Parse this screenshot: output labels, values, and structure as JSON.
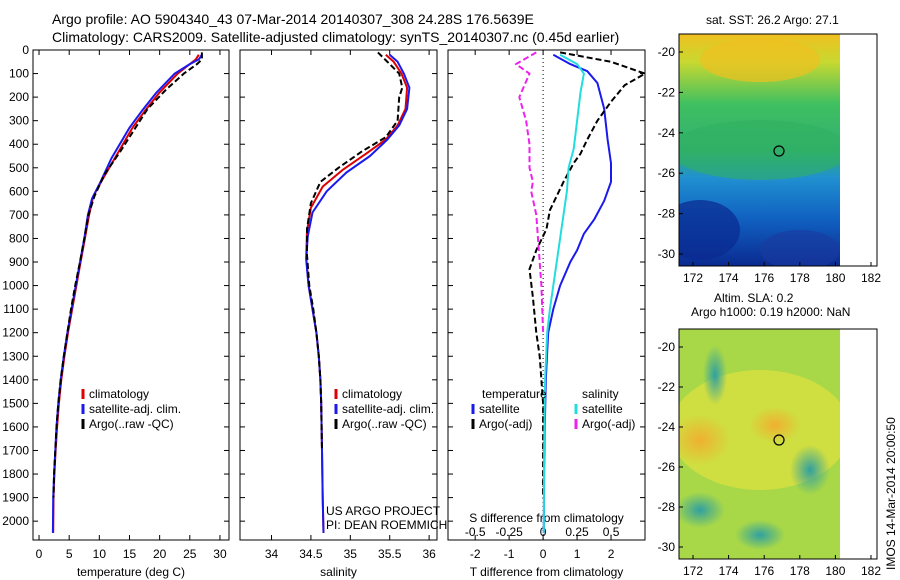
{
  "title_line1": "Argo profile: AO 5904340_43 07-Mar-2014 20140307_308 24.28S 176.5639E",
  "title_line2": "Climatology: CARS2009. Satellite-adjusted climatology: synTS_20140307.nc (0.45d earlier)",
  "colors": {
    "clim": "#dd0000",
    "sat": "#1a1aee",
    "argo": "#000000",
    "sat_s": "#22dddd",
    "argo_s": "#ee22ee"
  },
  "chart_data": [
    {
      "type": "line",
      "name": "temperature",
      "xlabel": "temperature (deg C)",
      "xlim": [
        -1,
        31.5
      ],
      "ylim": [
        2080,
        0
      ],
      "xticks": [
        0,
        5,
        10,
        15,
        20,
        25,
        30
      ],
      "yticks": [
        0,
        100,
        200,
        300,
        400,
        500,
        600,
        700,
        800,
        900,
        1000,
        1100,
        1200,
        1300,
        1400,
        1500,
        1600,
        1700,
        1800,
        1900,
        2000
      ],
      "legend": [
        "climatology",
        "satellite-adj. clim.",
        "Argo(..raw -QC)"
      ],
      "series": [
        {
          "name": "climatology",
          "color_key": "clim",
          "dash": "",
          "x": [
            26.5,
            26.0,
            25.0,
            23.0,
            20.0,
            17.5,
            15.5,
            13.0,
            10.5,
            9.0,
            8.3,
            7.6,
            6.9,
            6.2,
            5.5,
            4.8,
            4.2,
            3.7,
            3.3,
            3.0,
            2.75,
            2.55,
            2.4,
            2.35
          ],
          "y": [
            20,
            40,
            60,
            100,
            180,
            260,
            330,
            440,
            550,
            620,
            700,
            800,
            900,
            1000,
            1100,
            1200,
            1300,
            1400,
            1500,
            1600,
            1700,
            1800,
            1900,
            2050
          ]
        },
        {
          "name": "satellite-adj. clim.",
          "color_key": "sat",
          "dash": "",
          "x": [
            27.0,
            26.5,
            25.0,
            22.5,
            19.5,
            17.0,
            15.0,
            12.0,
            10.2,
            8.8,
            8.1,
            7.5,
            6.8,
            6.1,
            5.4,
            4.7,
            4.1,
            3.6,
            3.2,
            2.9,
            2.7,
            2.5,
            2.35,
            2.3
          ],
          "y": [
            20,
            40,
            60,
            100,
            180,
            260,
            330,
            460,
            560,
            630,
            700,
            800,
            900,
            1000,
            1100,
            1200,
            1300,
            1400,
            1500,
            1600,
            1700,
            1800,
            1900,
            2050
          ]
        },
        {
          "name": "Argo(..raw -QC)",
          "color_key": "argo",
          "dash": "6,3",
          "x": [
            27.0,
            27.0,
            26.2,
            24.0,
            21.0,
            18.0,
            16.0,
            13.5,
            10.8,
            9.2,
            8.2,
            7.5,
            6.8,
            6.0,
            5.3,
            4.7,
            4.1,
            3.6,
            3.2,
            2.9,
            2.7,
            2.5,
            2.4
          ],
          "y": [
            10,
            40,
            60,
            100,
            170,
            250,
            330,
            430,
            530,
            620,
            700,
            800,
            900,
            1000,
            1100,
            1200,
            1300,
            1400,
            1500,
            1600,
            1700,
            1800,
            1900
          ]
        }
      ]
    },
    {
      "type": "line",
      "name": "salinity",
      "xlabel": "salinity",
      "xlim": [
        33.6,
        36.1
      ],
      "ylim": [
        2080,
        0
      ],
      "xticks": [
        34,
        34.5,
        35,
        35.5,
        36
      ],
      "legend": [
        "climatology",
        "satellite-adj. clim.",
        "Argo(..raw -QC)"
      ],
      "series": [
        {
          "name": "climatology",
          "color_key": "clim",
          "dash": "",
          "x": [
            35.45,
            35.55,
            35.65,
            35.72,
            35.7,
            35.6,
            35.45,
            35.2,
            34.9,
            34.65,
            34.5,
            34.45,
            34.44,
            34.47,
            34.52,
            34.57,
            34.6,
            34.62,
            34.63,
            34.64,
            34.65,
            34.66
          ],
          "y": [
            20,
            50,
            100,
            160,
            250,
            320,
            380,
            440,
            510,
            580,
            670,
            770,
            880,
            1000,
            1100,
            1200,
            1300,
            1400,
            1500,
            1700,
            1900,
            2050
          ]
        },
        {
          "name": "satellite-adj. clim.",
          "color_key": "sat",
          "dash": "",
          "x": [
            35.5,
            35.6,
            35.68,
            35.75,
            35.72,
            35.62,
            35.47,
            35.25,
            34.95,
            34.7,
            34.52,
            34.46,
            34.44,
            34.47,
            34.52,
            34.57,
            34.6,
            34.62,
            34.63,
            34.64,
            34.65,
            34.66
          ],
          "y": [
            20,
            50,
            100,
            160,
            250,
            320,
            380,
            450,
            520,
            600,
            690,
            790,
            890,
            1000,
            1100,
            1200,
            1300,
            1400,
            1500,
            1700,
            1900,
            2050
          ]
        },
        {
          "name": "Argo(..raw -QC)",
          "color_key": "argo",
          "dash": "6,3",
          "x": [
            35.35,
            35.5,
            35.62,
            35.66,
            35.62,
            35.6,
            35.45,
            35.15,
            34.85,
            34.62,
            34.5,
            34.45,
            34.45,
            34.48,
            34.53,
            34.57,
            34.6,
            34.62,
            34.63,
            34.64
          ],
          "y": [
            10,
            60,
            100,
            160,
            200,
            300,
            370,
            430,
            500,
            560,
            650,
            760,
            870,
            1000,
            1100,
            1200,
            1300,
            1400,
            1500,
            1700
          ]
        }
      ],
      "annotation1": "US ARGO PROJECT",
      "annotation2": "PI: DEAN ROEMMICH"
    },
    {
      "type": "line",
      "name": "differences",
      "xlabel": "T difference from climatology",
      "xlabel_top": "S difference from climatology",
      "xlim": [
        -2.8,
        3.0
      ],
      "ylim": [
        2080,
        0
      ],
      "xticks": [
        -2,
        -1,
        0,
        1,
        2
      ],
      "xticks_s_labels": [
        "-0.5",
        "-0.25",
        "0",
        "0.25",
        "0.5"
      ],
      "xticks_s_values": [
        -2,
        -1,
        0,
        1,
        2
      ],
      "legend_t_title": "temperature",
      "legend_s_title": "salinity",
      "legend_t": [
        "satellite",
        "Argo(-adj)"
      ],
      "legend_s": [
        "satellite",
        "Argo(-adj)"
      ],
      "series": [
        {
          "name": "T satellite",
          "color_key": "sat",
          "dash": "",
          "x": [
            0.3,
            0.8,
            1.3,
            1.6,
            1.8,
            1.9,
            2.0,
            2.0,
            1.8,
            1.5,
            1.2,
            1.0,
            0.8,
            0.5,
            0.3,
            0.15,
            0.08,
            0.05,
            0.03,
            0.02
          ],
          "y": [
            20,
            60,
            90,
            140,
            250,
            380,
            480,
            560,
            640,
            720,
            780,
            850,
            900,
            1000,
            1100,
            1200,
            1400,
            1600,
            1800,
            2050
          ]
        },
        {
          "name": "T Argo(-adj)",
          "color_key": "argo",
          "dash": "6,3",
          "x": [
            0.5,
            2.0,
            3.0,
            2.4,
            2.0,
            1.6,
            1.3,
            1.1,
            0.9,
            0.6,
            0.2,
            0.1,
            -0.2,
            -0.4,
            -0.3,
            -0.2,
            -0.1,
            0.0,
            0.0,
            0.0
          ],
          "y": [
            10,
            50,
            100,
            150,
            220,
            300,
            380,
            440,
            480,
            560,
            680,
            760,
            850,
            930,
            1050,
            1200,
            1300,
            1500,
            1700,
            1900
          ]
        },
        {
          "name": "S satellite",
          "color_key": "sat_s",
          "dash": "",
          "x": [
            0.5,
            1.0,
            1.2,
            1.1,
            1.0,
            0.9,
            0.75,
            0.7,
            0.6,
            0.5,
            0.4,
            0.3,
            0.2,
            0.12,
            0.06,
            0.03,
            0.02
          ],
          "y": [
            20,
            60,
            100,
            180,
            300,
            420,
            500,
            600,
            700,
            800,
            900,
            1000,
            1100,
            1200,
            1400,
            1700,
            2050
          ]
        },
        {
          "name": "S Argo(-adj)",
          "color_key": "argo_s",
          "dash": "6,3",
          "x": [
            -0.2,
            -0.8,
            -0.4,
            -0.7,
            -0.5,
            -0.4,
            -0.4,
            -0.3,
            -0.35,
            -0.2,
            -0.15,
            -0.1,
            -0.05,
            0.0
          ],
          "y": [
            10,
            60,
            100,
            200,
            300,
            400,
            500,
            560,
            600,
            700,
            800,
            900,
            1000,
            1200
          ]
        }
      ]
    }
  ],
  "sst_panel": {
    "title": "sat. SST: 26.2 Argo: 27.1",
    "xticks": [
      "172",
      "174",
      "176",
      "178",
      "180",
      "182"
    ],
    "yticks": [
      "-20",
      "-22",
      "-24",
      "-26",
      "-28",
      "-30"
    ]
  },
  "sla_panel": {
    "title1": "Altim. SLA: 0.2",
    "title2": "Argo h1000: 0.19 h2000: NaN",
    "xticks": [
      "172",
      "174",
      "176",
      "178",
      "180",
      "182"
    ],
    "yticks": [
      "-20",
      "-22",
      "-24",
      "-26",
      "-28",
      "-30"
    ]
  },
  "credit": "IMOS 14-Mar-2014 20:00:50"
}
